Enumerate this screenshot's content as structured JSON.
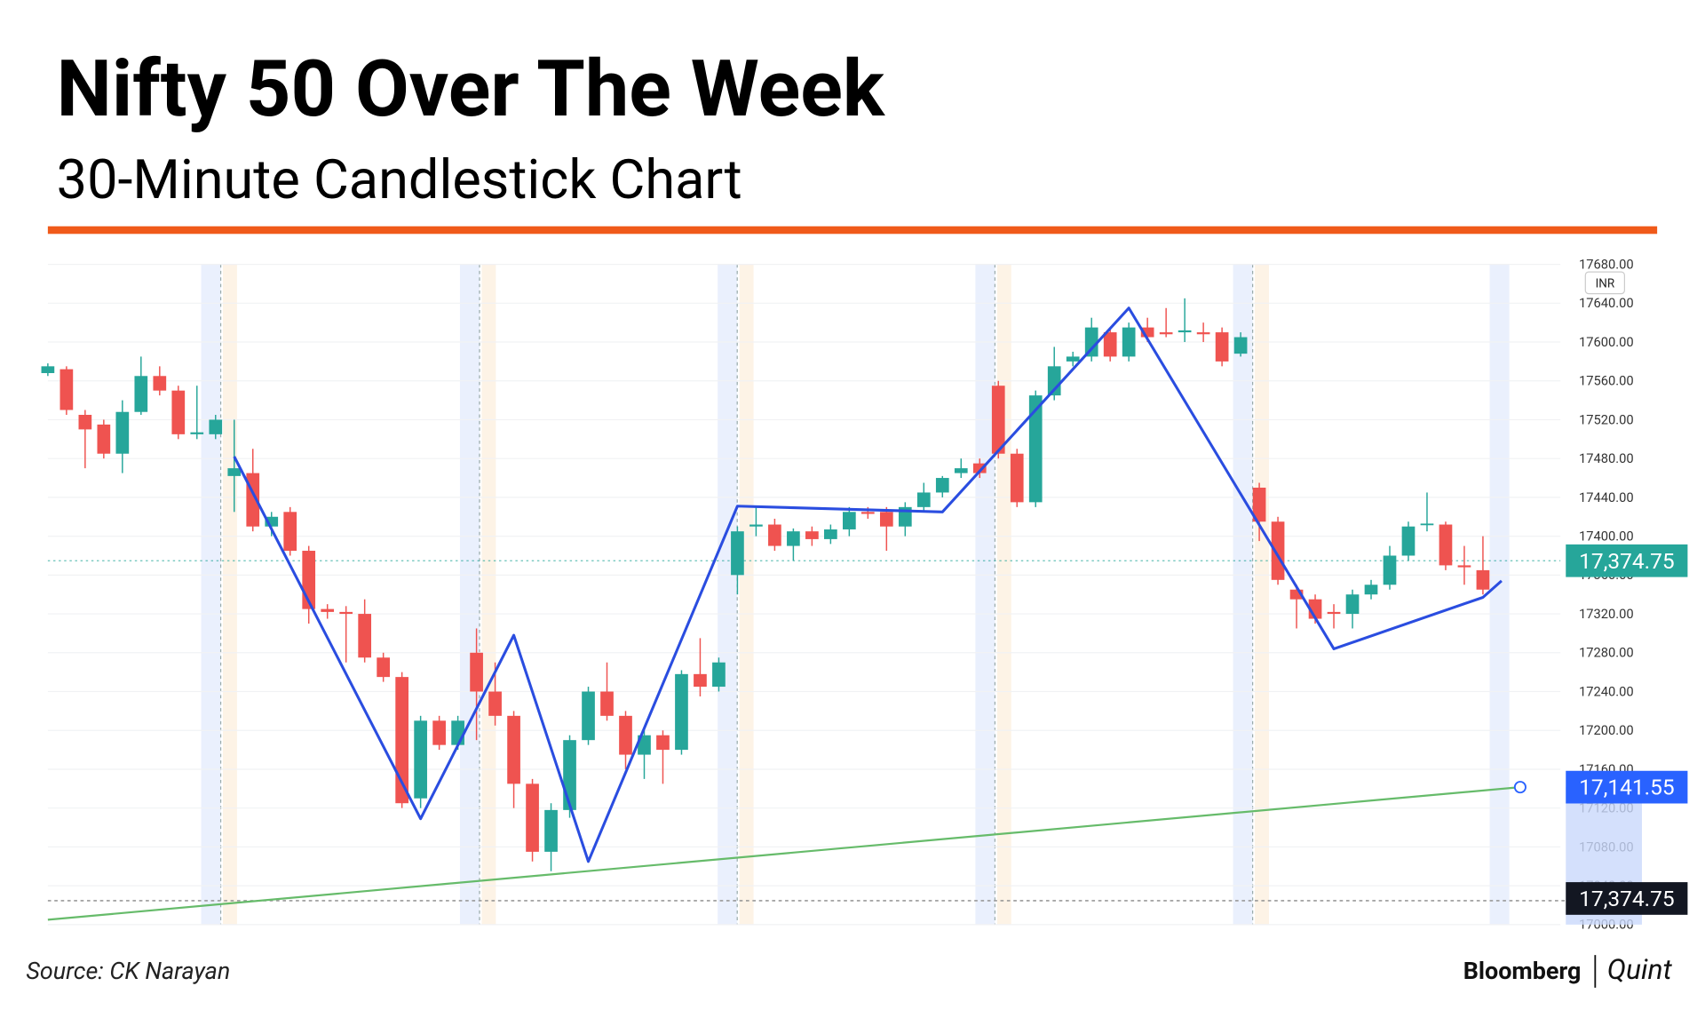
{
  "chart_data": {
    "type": "candlestick",
    "title": "Nifty 50 Over The Week",
    "subtitle": "30-Minute Candlestick Chart",
    "source": "Source: CK Narayan",
    "brand": [
      "Bloomberg",
      "Quint"
    ],
    "currency_button": "INR",
    "ylim": [
      17000,
      17680
    ],
    "yticks": [
      {
        "value": 17000,
        "label": "17000.00"
      },
      {
        "value": 17040,
        "label": "17040.00"
      },
      {
        "value": 17080,
        "label": "17080.00"
      },
      {
        "value": 17120,
        "label": "17120.00"
      },
      {
        "value": 17160,
        "label": "17160.00"
      },
      {
        "value": 17200,
        "label": "17200.00"
      },
      {
        "value": 17240,
        "label": "17240.00"
      },
      {
        "value": 17280,
        "label": "17280.00"
      },
      {
        "value": 17320,
        "label": "17320.00"
      },
      {
        "value": 17360,
        "label": "17360.00"
      },
      {
        "value": 17400,
        "label": "17400.00"
      },
      {
        "value": 17440,
        "label": "17440.00"
      },
      {
        "value": 17480,
        "label": "17480.00"
      },
      {
        "value": 17520,
        "label": "17520.00"
      },
      {
        "value": 17560,
        "label": "17560.00"
      },
      {
        "value": 17600,
        "label": "17600.00"
      },
      {
        "value": 17640,
        "label": "17640.00"
      },
      {
        "value": 17680,
        "label": "17680.00"
      }
    ],
    "up_color": "#26a69a",
    "down_color": "#ef5350",
    "open": [
      17568,
      17572,
      17525,
      17515,
      17485,
      17528,
      17565,
      17550,
      17505,
      17505,
      17462,
      17465,
      17410,
      17425,
      17385,
      17325,
      17322,
      17320,
      17275,
      17255,
      17130,
      17210,
      17185,
      17280,
      17240,
      17215,
      17145,
      17075,
      17118,
      17190,
      17240,
      17215,
      17175,
      17195,
      17180,
      17258,
      17245,
      17360,
      17410,
      17412,
      17390,
      17405,
      17397,
      17407,
      17425,
      17425,
      17410,
      17430,
      17445,
      17465,
      17475,
      17555,
      17485,
      17435,
      17545,
      17580,
      17585,
      17610,
      17585,
      17615,
      17610,
      17610,
      17610,
      17610,
      17588,
      17450,
      17415,
      17345,
      17335,
      17322,
      17320,
      17340,
      17350,
      17380,
      17412,
      17412,
      17370,
      17365
    ],
    "high": [
      17578,
      17575,
      17530,
      17520,
      17540,
      17585,
      17575,
      17555,
      17555,
      17525,
      17520,
      17490,
      17425,
      17430,
      17390,
      17330,
      17328,
      17335,
      17280,
      17260,
      17215,
      17215,
      17215,
      17305,
      17270,
      17220,
      17150,
      17125,
      17195,
      17245,
      17270,
      17220,
      17200,
      17200,
      17262,
      17295,
      17275,
      17410,
      17430,
      17418,
      17408,
      17410,
      17412,
      17430,
      17430,
      17430,
      17435,
      17455,
      17462,
      17480,
      17480,
      17560,
      17490,
      17550,
      17595,
      17590,
      17625,
      17615,
      17620,
      17625,
      17635,
      17645,
      17620,
      17615,
      17610,
      17455,
      17420,
      17350,
      17340,
      17330,
      17345,
      17355,
      17390,
      17415,
      17445,
      17415,
      17390,
      17400
    ],
    "low": [
      17565,
      17525,
      17470,
      17480,
      17465,
      17525,
      17545,
      17500,
      17500,
      17500,
      17425,
      17405,
      17400,
      17380,
      17310,
      17315,
      17270,
      17270,
      17250,
      17120,
      17120,
      17180,
      17180,
      17190,
      17205,
      17120,
      17065,
      17055,
      17110,
      17185,
      17210,
      17160,
      17150,
      17145,
      17175,
      17235,
      17240,
      17340,
      17400,
      17385,
      17375,
      17390,
      17392,
      17400,
      17418,
      17385,
      17400,
      17425,
      17440,
      17460,
      17460,
      17480,
      17430,
      17430,
      17540,
      17575,
      17580,
      17580,
      17580,
      17600,
      17605,
      17600,
      17600,
      17575,
      17585,
      17395,
      17350,
      17305,
      17310,
      17305,
      17305,
      17335,
      17345,
      17375,
      17405,
      17365,
      17350,
      17340
    ],
    "close": [
      17575,
      17530,
      17510,
      17485,
      17528,
      17565,
      17550,
      17505,
      17507,
      17520,
      17470,
      17410,
      17420,
      17385,
      17325,
      17322,
      17320,
      17275,
      17255,
      17125,
      17210,
      17185,
      17210,
      17240,
      17215,
      17145,
      17075,
      17118,
      17190,
      17240,
      17215,
      17175,
      17195,
      17180,
      17258,
      17245,
      17270,
      17405,
      17412,
      17390,
      17405,
      17397,
      17407,
      17425,
      17423,
      17410,
      17430,
      17445,
      17460,
      17470,
      17465,
      17485,
      17435,
      17545,
      17575,
      17585,
      17615,
      17585,
      17615,
      17605,
      17608,
      17612,
      17608,
      17580,
      17605,
      17415,
      17355,
      17335,
      17315,
      17320,
      17340,
      17350,
      17380,
      17410,
      17413,
      17370,
      17368,
      17345
    ],
    "zigzag": {
      "color": "#2a4de0",
      "x": [
        10,
        20,
        25,
        29,
        37,
        48,
        58,
        69,
        77,
        78
      ],
      "values": [
        17482,
        17109,
        17298,
        17065,
        17431,
        17425,
        17635,
        17284,
        17337,
        17354
      ]
    },
    "trendline": {
      "color": "#66bb6a",
      "x": [
        0,
        79
      ],
      "values": [
        17005,
        17141.55
      ]
    },
    "price_labels": [
      {
        "value": 17374.75,
        "label": "17,374.75",
        "color": "#26a69a"
      },
      {
        "value": 17141.55,
        "label": "17,141.55",
        "color": "#2962ff"
      }
    ],
    "bottom_label": {
      "label": "17,374.75",
      "color": "#131722"
    }
  }
}
